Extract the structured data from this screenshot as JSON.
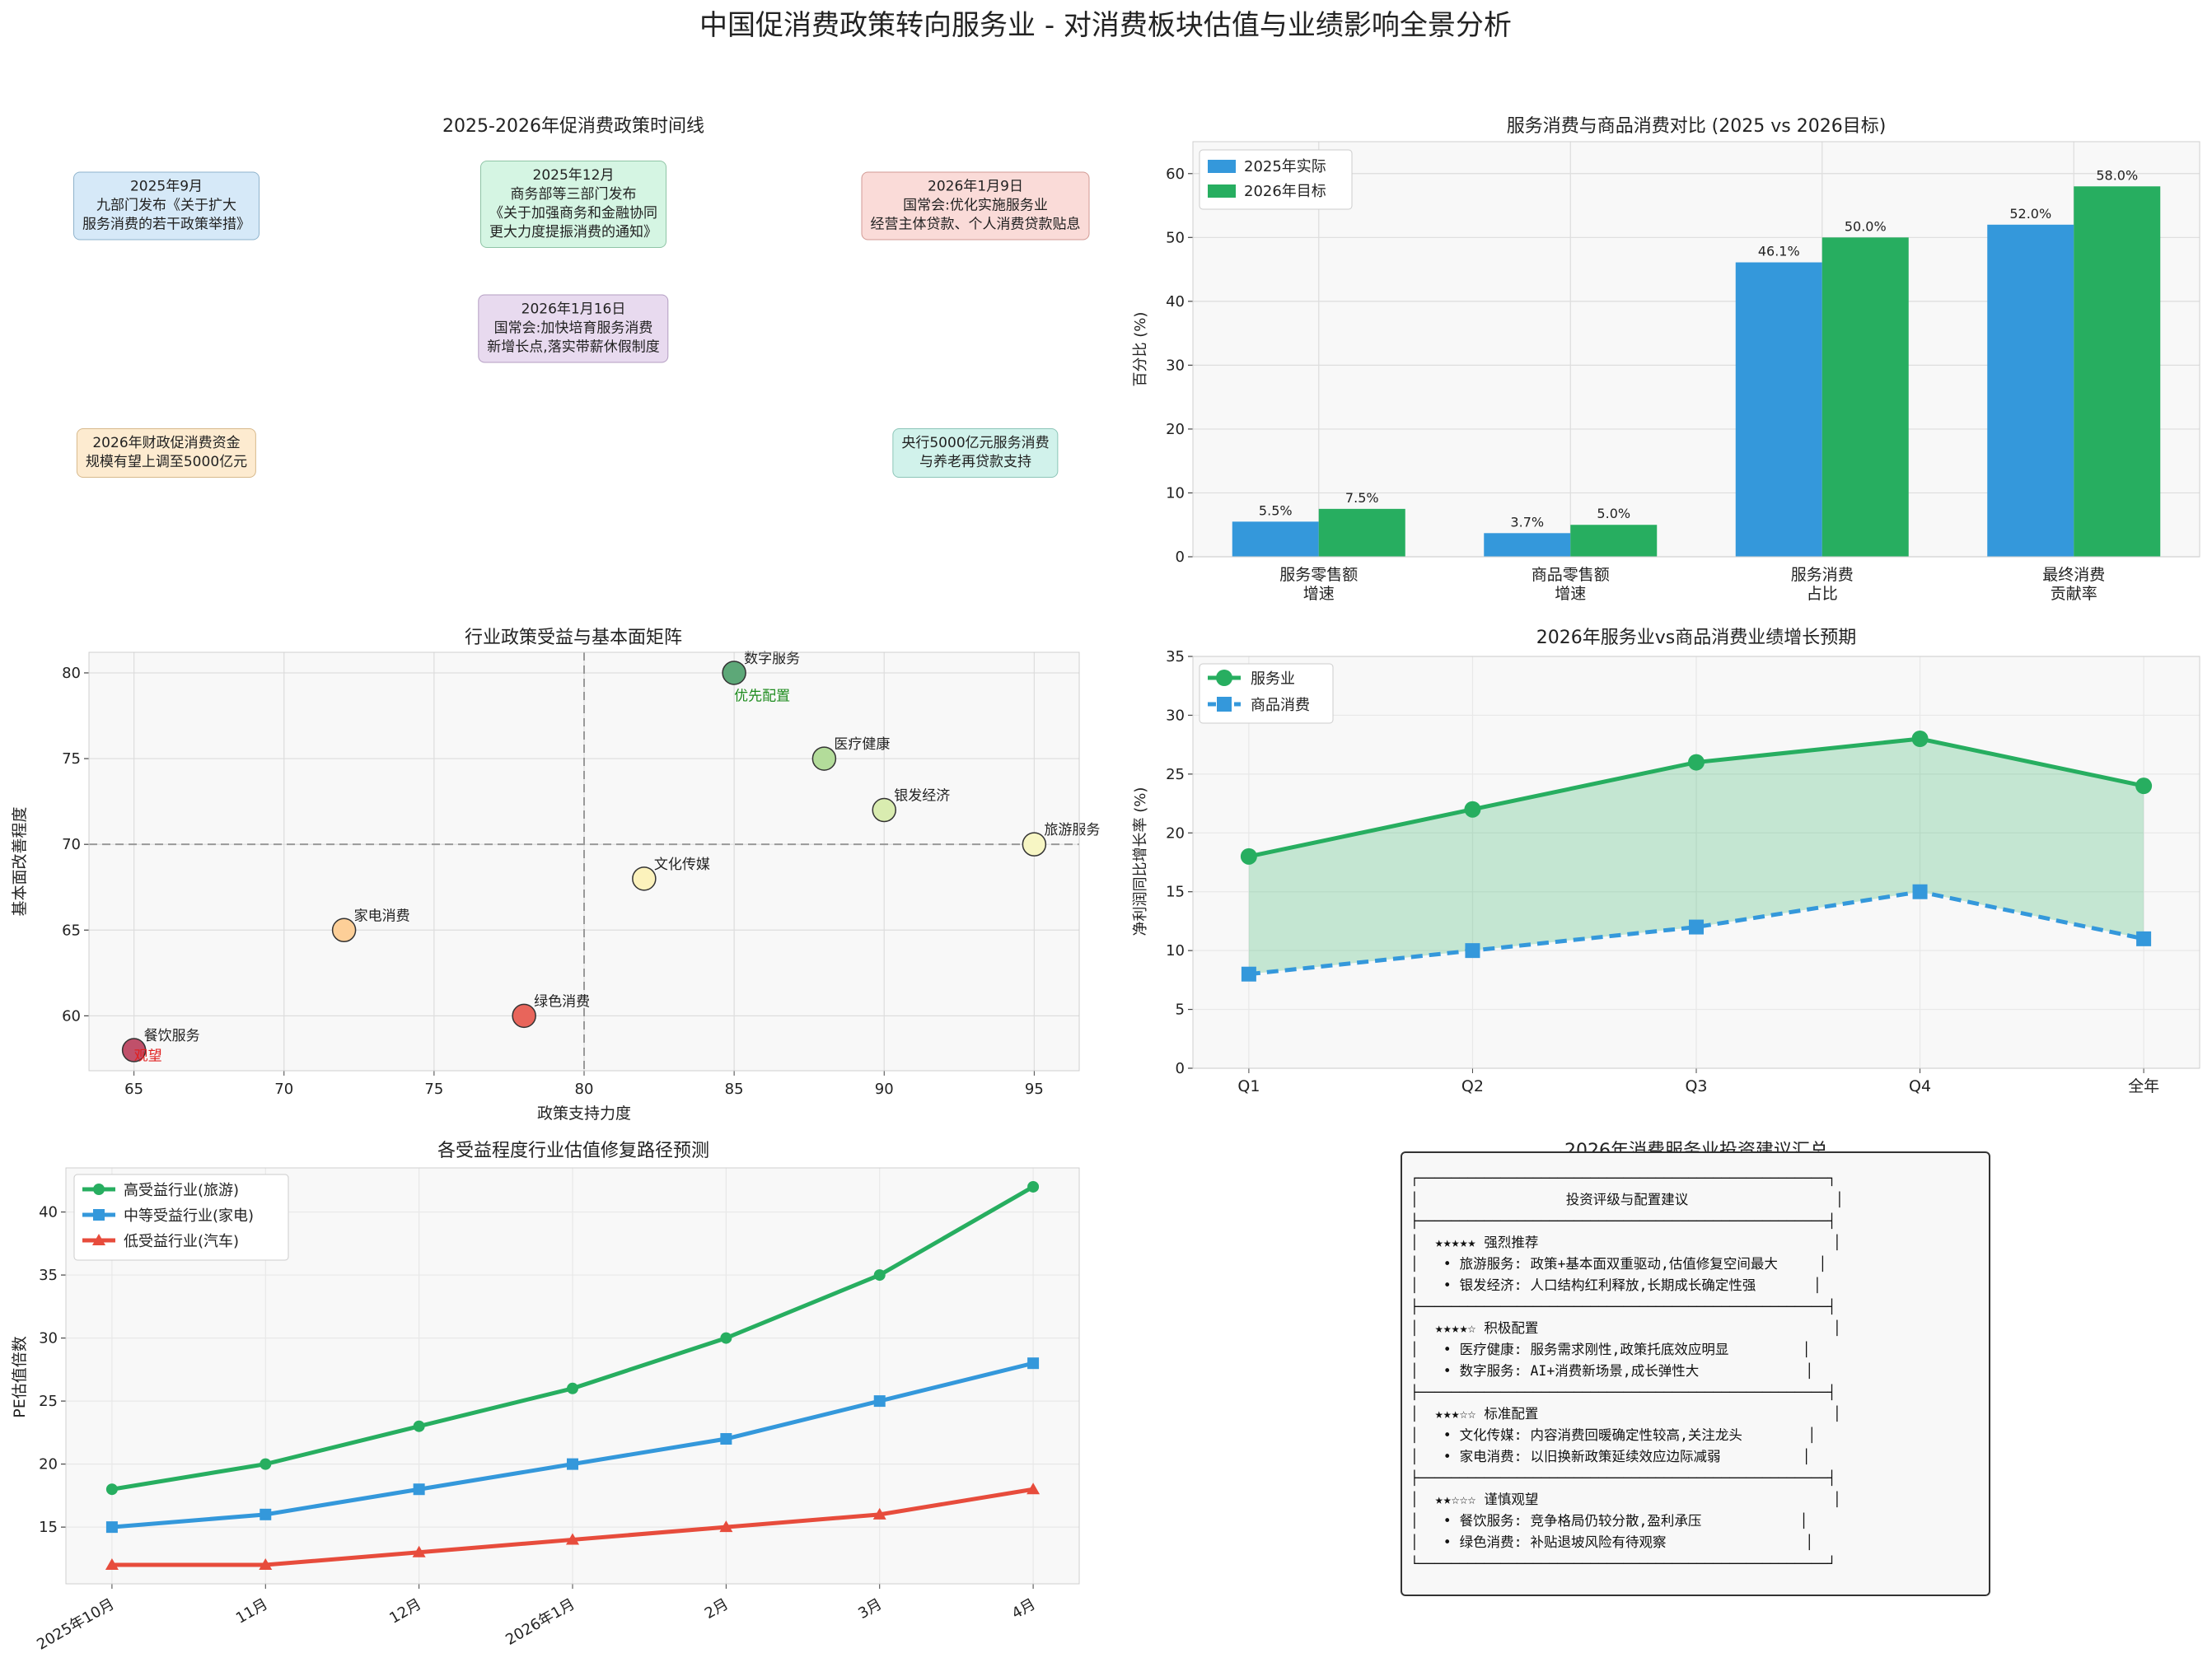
{
  "main_title": "中国促消费政策转向服务业 - 对消费板块估值与业绩影响全景分析",
  "timeline": {
    "title": "2025-2026年促消费政策时间线",
    "events": [
      {
        "lines": [
          "2025年9月",
          "九部门发布《关于扩大",
          "服务消费的若干政策举措》"
        ],
        "bg": "#d6e9f8",
        "border": "#8fb3cc"
      },
      {
        "lines": [
          "2025年12月",
          "商务部等三部门发布",
          "《关于加强商务和金融协同",
          "更大力度提振消费的通知》"
        ],
        "bg": "#d5f5e3",
        "border": "#8fc4a6"
      },
      {
        "lines": [
          "2026年1月9日",
          "国常会:优化实施服务业",
          "经营主体贷款、个人消费贷款贴息"
        ],
        "bg": "#fadbd8",
        "border": "#d19a94"
      },
      {
        "lines": [
          "2026年1月16日",
          "国常会:加快培育服务消费",
          "新增长点,落实带薪休假制度"
        ],
        "bg": "#e8daef",
        "border": "#b39dc2"
      },
      {
        "lines": [
          "2026年财政促消费资金",
          "规模有望上调至5000亿元"
        ],
        "bg": "#fdebd0",
        "border": "#d7b98c"
      },
      {
        "lines": [
          "央行5000亿元服务消费",
          "与养老再贷款支持"
        ],
        "bg": "#d1f2eb",
        "border": "#8cc5b8"
      }
    ]
  },
  "bar_chart": {
    "title": "服务消费与商品消费对比 (2025 vs 2026目标)",
    "ylabel": "百分比 (%)",
    "legend": [
      "2025年实际",
      "2026年目标"
    ]
  },
  "scatter_chart": {
    "title": "行业政策受益与基本面矩阵",
    "xlabel": "政策支持力度",
    "ylabel": "基本面改善程度",
    "zone_priority": "优先配置",
    "zone_watch": "观望"
  },
  "line_chart": {
    "title": "2026年服务业vs商品消费业绩增长预期",
    "ylabel": "净利润同比增长率 (%)"
  },
  "pe_chart": {
    "title": "各受益程度行业估值修复路径预测",
    "ylabel": "PE估值倍数"
  },
  "advice": {
    "title": "2026年消费服务业投资建议汇总",
    "lines": [
      "┌──────────────────────────────────────────────────┐",
      "│                  投资评级与配置建议                  │",
      "├──────────────────────────────────────────────────┤",
      "│  ★★★★★ 强烈推荐                                    │",
      "│   • 旅游服务: 政策+基本面双重驱动,估值修复空间最大     │",
      "│   • 银发经济: 人口结构红利释放,长期成长确定性强       │",
      "├──────────────────────────────────────────────────┤",
      "│  ★★★★☆ 积极配置                                    │",
      "│   • 医疗健康: 服务需求刚性,政策托底效应明显         │",
      "│   • 数字服务: AI+消费新场景,成长弹性大             │",
      "├──────────────────────────────────────────────────┤",
      "│  ★★★☆☆ 标准配置                                    │",
      "│   • 文化传媒: 内容消费回暖确定性较高,关注龙头        │",
      "│   • 家电消费: 以旧换新政策延续效应边际减弱          │",
      "├──────────────────────────────────────────────────┤",
      "│  ★★☆☆☆ 谨慎观望                                    │",
      "│   • 餐饮服务: 竞争格局仍较分散,盈利承压            │",
      "│   • 绿色消费: 补贴退坡风险有待观察                 │",
      "└──────────────────────────────────────────────────┘"
    ]
  },
  "chart_data": [
    {
      "type": "bar",
      "title": "服务消费与商品消费对比 (2025 vs 2026目标)",
      "categories": [
        "服务零售额\n增速",
        "商品零售额\n增速",
        "服务消费\n占比",
        "最终消费\n贡献率"
      ],
      "series": [
        {
          "name": "2025年实际",
          "values": [
            5.5,
            3.7,
            46.1,
            52.0
          ],
          "color": "#3498db"
        },
        {
          "name": "2026年目标",
          "values": [
            7.5,
            5.0,
            50.0,
            58.0
          ],
          "color": "#27ae60"
        }
      ],
      "ylabel": "百分比 (%)",
      "ylim": [
        0,
        65
      ],
      "yticks": [
        0,
        10,
        20,
        30,
        40,
        50,
        60
      ],
      "legend": "top-left",
      "grid": true
    },
    {
      "type": "scatter",
      "title": "行业政策受益与基本面矩阵",
      "xlabel": "政策支持力度",
      "ylabel": "基本面改善程度",
      "xlim": [
        63.5,
        96.5
      ],
      "ylim": [
        56.8,
        81.2
      ],
      "xticks": [
        65,
        70,
        75,
        80,
        85,
        90,
        95
      ],
      "yticks": [
        60,
        65,
        70,
        75,
        80
      ],
      "reference_lines": {
        "x": 80,
        "y": 70
      },
      "points": [
        {
          "label": "旅游服务",
          "x": 95,
          "y": 70,
          "color": "#f7f6c4"
        },
        {
          "label": "医疗健康",
          "x": 88,
          "y": 75,
          "color": "#b3dc9a"
        },
        {
          "label": "银发经济",
          "x": 90,
          "y": 72,
          "color": "#d9ecb0"
        },
        {
          "label": "文化传媒",
          "x": 82,
          "y": 68,
          "color": "#fcf2bc"
        },
        {
          "label": "数字服务",
          "x": 85,
          "y": 80,
          "color": "#5da878"
        },
        {
          "label": "家电消费",
          "x": 72,
          "y": 65,
          "color": "#fdcf98"
        },
        {
          "label": "绿色消费",
          "x": 78,
          "y": 60,
          "color": "#e8655b"
        },
        {
          "label": "餐饮服务",
          "x": 65,
          "y": 58,
          "color": "#c0506a"
        }
      ],
      "grid": true
    },
    {
      "type": "line",
      "title": "2026年服务业vs商品消费业绩增长预期",
      "categories": [
        "Q1",
        "Q2",
        "Q3",
        "Q4",
        "全年"
      ],
      "series": [
        {
          "name": "服务业",
          "values": [
            18,
            22,
            26,
            28,
            24
          ],
          "color": "#27ae60"
        },
        {
          "name": "商品消费",
          "values": [
            8,
            10,
            12,
            15,
            11
          ],
          "color": "#3498db"
        }
      ],
      "ylabel": "净利润同比增长率 (%)",
      "ylim": [
        0,
        35
      ],
      "yticks": [
        0,
        5,
        10,
        15,
        20,
        25,
        30,
        35
      ],
      "legend": "top-left",
      "grid": true
    },
    {
      "type": "line",
      "title": "各受益程度行业估值修复路径预测",
      "categories": [
        "2025年10月",
        "11月",
        "12月",
        "2026年1月",
        "2月",
        "3月",
        "4月"
      ],
      "series": [
        {
          "name": "高受益行业(旅游)",
          "values": [
            18,
            20,
            23,
            26,
            30,
            35,
            42
          ],
          "color": "#27ae60"
        },
        {
          "name": "中等受益行业(家电)",
          "values": [
            15,
            16,
            18,
            20,
            22,
            25,
            28
          ],
          "color": "#3498db"
        },
        {
          "name": "低受益行业(汽车)",
          "values": [
            12,
            12,
            13,
            14,
            15,
            16,
            18
          ],
          "color": "#e74c3c"
        }
      ],
      "ylabel": "PE估值倍数",
      "ylim": [
        10.5,
        43.5
      ],
      "yticks": [
        15,
        20,
        25,
        30,
        35,
        40
      ],
      "legend": "top-left",
      "grid": true
    }
  ]
}
